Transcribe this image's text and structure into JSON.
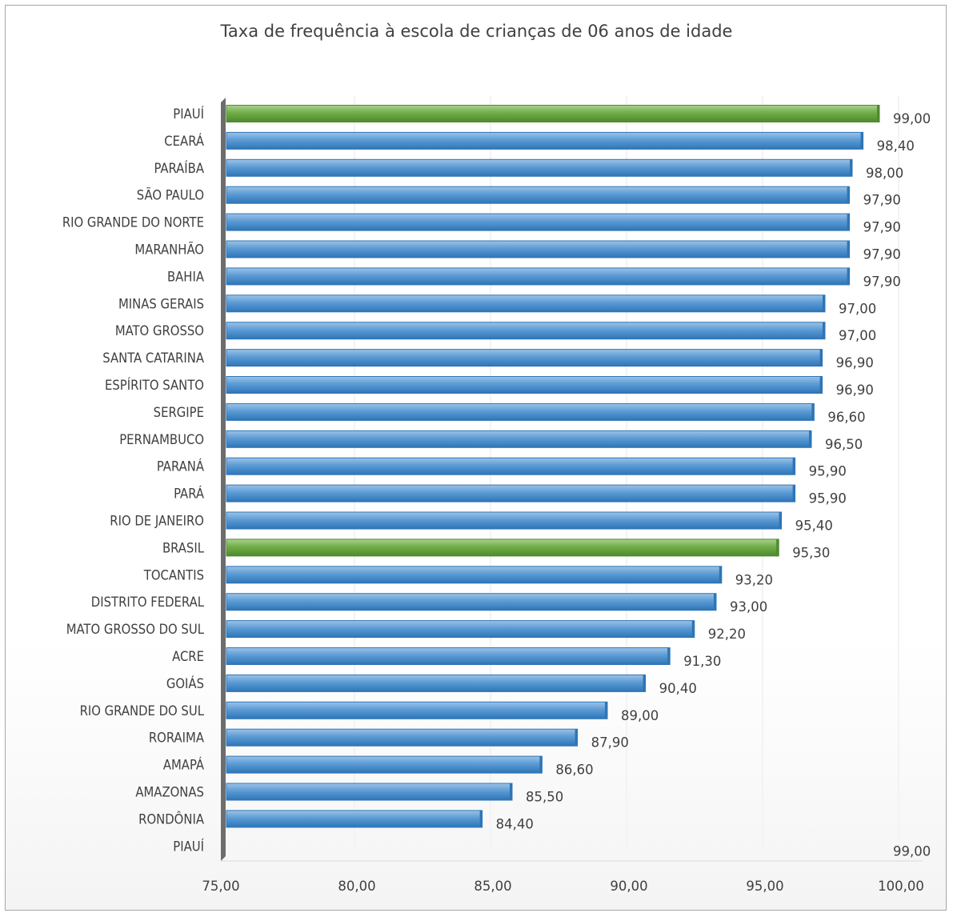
{
  "chart_data": {
    "type": "bar",
    "orientation": "horizontal",
    "title": "Taxa de frequência à escola de crianças de 06 anos de idade",
    "xlabel": "",
    "ylabel": "",
    "xlim": [
      75,
      100
    ],
    "x_ticks": [
      "75,00",
      "80,00",
      "85,00",
      "90,00",
      "95,00",
      "100,00"
    ],
    "grid": false,
    "categories": [
      "PIAUÍ",
      "CEARÁ",
      "PARAÍBA",
      "SÃO PAULO",
      "RIO GRANDE DO NORTE",
      "MARANHÃO",
      "BAHIA",
      "MINAS GERAIS",
      "MATO GROSSO",
      "SANTA CATARINA",
      "ESPÍRITO SANTO",
      "SERGIPE",
      "PERNAMBUCO",
      "PARANÁ",
      "PARÁ",
      "RIO DE JANEIRO",
      "BRASIL",
      "TOCANTIS",
      "DISTRITO FEDERAL",
      "MATO GROSSO DO SUL",
      "ACRE",
      "GOIÁS",
      "RIO GRANDE DO SUL",
      "RORAIMA",
      "AMAPÁ",
      "AMAZONAS",
      "RONDÔNIA",
      "PIAUÍ"
    ],
    "values": [
      99.0,
      98.4,
      98.0,
      97.9,
      97.9,
      97.9,
      97.9,
      97.0,
      97.0,
      96.9,
      96.9,
      96.6,
      96.5,
      95.9,
      95.9,
      95.4,
      95.3,
      93.2,
      93.0,
      92.2,
      91.3,
      90.4,
      89.0,
      87.9,
      86.6,
      85.5,
      84.4,
      99.0
    ],
    "value_labels": [
      "99,00",
      "98,40",
      "98,00",
      "97,90",
      "97,90",
      "97,90",
      "97,90",
      "97,00",
      "97,00",
      "96,90",
      "96,90",
      "96,60",
      "96,50",
      "95,90",
      "95,90",
      "95,40",
      "95,30",
      "93,20",
      "93,00",
      "92,20",
      "91,30",
      "90,40",
      "89,00",
      "87,90",
      "86,60",
      "85,50",
      "84,40",
      "99,00"
    ],
    "bar_drawn": [
      true,
      true,
      true,
      true,
      true,
      true,
      true,
      true,
      true,
      true,
      true,
      true,
      true,
      true,
      true,
      true,
      true,
      true,
      true,
      true,
      true,
      true,
      true,
      true,
      true,
      true,
      true,
      false
    ],
    "highlighted": [
      true,
      false,
      false,
      false,
      false,
      false,
      false,
      false,
      false,
      false,
      false,
      false,
      false,
      false,
      false,
      false,
      true,
      false,
      false,
      false,
      false,
      false,
      false,
      false,
      false,
      false,
      false,
      false
    ],
    "colors": {
      "bar": "#5b9bd5",
      "bar_light": "#9dc3e6",
      "bar_dark": "#2e75b6",
      "highlight": "#70ad47",
      "highlight_light": "#a9d18e",
      "highlight_dark": "#4e8a2f",
      "text": "#404040",
      "axis": "#7f7f7f"
    }
  }
}
